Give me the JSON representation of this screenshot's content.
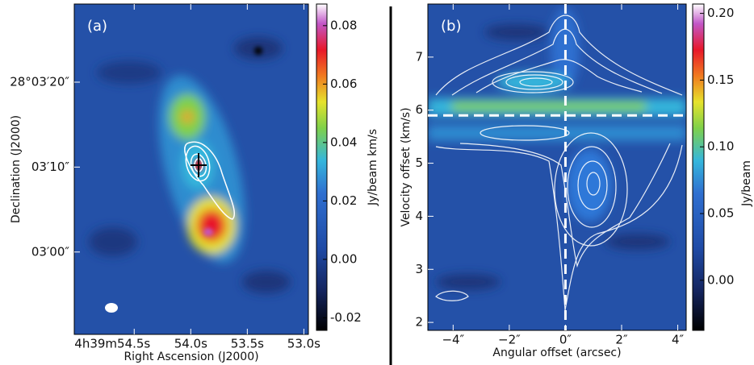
{
  "chart_data": [
    {
      "type": "heatmap",
      "panel_label": "(a)",
      "xlabel": "Right Ascension (J2000)",
      "ylabel": "Declination (J2000)",
      "xlim": [
        55.03,
        52.96
      ],
      "ylim": [
        -9.7,
        29.2
      ],
      "xticks": [
        {
          "value": 54.5,
          "label": "4h39m54.5s"
        },
        {
          "value": 54.0,
          "label": "54.0s"
        },
        {
          "value": 53.5,
          "label": "53.5s"
        },
        {
          "value": 53.0,
          "label": "53.0s"
        }
      ],
      "yticks": [
        {
          "value": 20,
          "label": "28°03′20″"
        },
        {
          "value": 10,
          "label": "03′10″"
        },
        {
          "value": 0,
          "label": "03′00″"
        }
      ],
      "colorbar": {
        "label": "Jy/beam km/s",
        "lim": [
          -0.0243,
          0.0874
        ],
        "ticks": [
          0.08,
          0.06,
          0.04,
          0.02,
          {
            "value": 0,
            "label": "0.00"
          },
          -0.02
        ]
      }
    },
    {
      "type": "heatmap",
      "panel_label": "(b)",
      "xlabel": "Angular offset (arcsec)",
      "ylabel": "Velocity offset (km/s)",
      "xlim": [
        -4.9,
        4.3
      ],
      "ylim": [
        1.85,
        8.0
      ],
      "xticks": [
        {
          "value": -4,
          "label": "−4″"
        },
        {
          "value": -2,
          "label": "−2″"
        },
        {
          "value": 0,
          "label": "0″"
        },
        {
          "value": 2,
          "label": "2″"
        },
        {
          "value": 4,
          "label": "4″"
        }
      ],
      "yticks": [
        2,
        3,
        4,
        5,
        6,
        7
      ],
      "reference_lines": {
        "x": 0,
        "y": 5.9
      },
      "colorbar": {
        "label": "Jy/beam",
        "lim": [
          -0.0375,
          0.207
        ],
        "ticks": [
          {
            "value": 0.2,
            "label": "0.20"
          },
          0.15,
          {
            "value": 0.1,
            "label": "0.10"
          },
          0.05,
          {
            "value": 0,
            "label": "0.00"
          }
        ]
      }
    }
  ]
}
